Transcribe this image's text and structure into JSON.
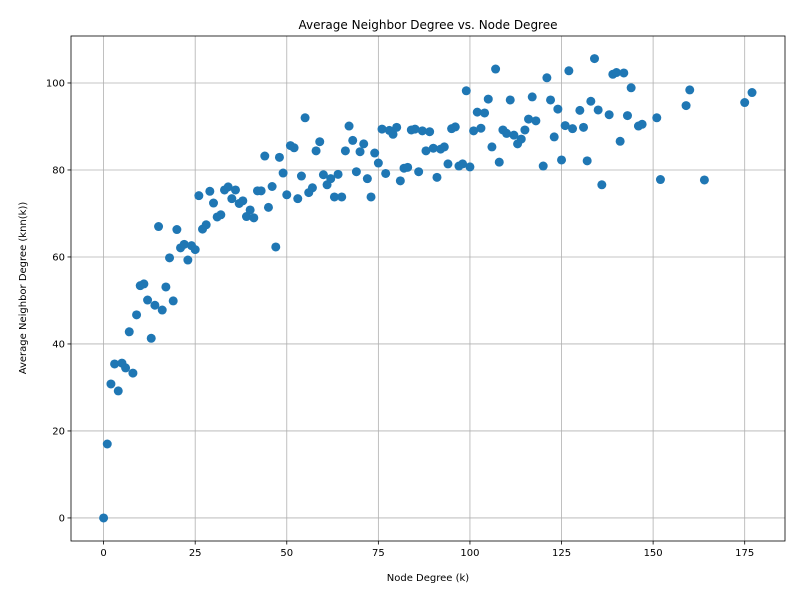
{
  "chart_data": {
    "type": "scatter",
    "title": "Average Neighbor Degree vs. Node Degree",
    "xlabel": "Node Degree (k)",
    "ylabel": "Average Neighbor Degree (knn(k))",
    "xlim": [
      -8.9,
      186
    ],
    "ylim": [
      -5.3,
      110.8
    ],
    "xticks": [
      0,
      25,
      50,
      75,
      100,
      125,
      150,
      175
    ],
    "yticks": [
      0,
      20,
      40,
      60,
      80,
      100
    ],
    "xtick_labels": [
      "0",
      "25",
      "50",
      "75",
      "100",
      "125",
      "150",
      "175"
    ],
    "ytick_labels": [
      "0",
      "20",
      "40",
      "60",
      "80",
      "100"
    ],
    "grid": true,
    "marker_color": "#1f77b4",
    "series": [
      {
        "x": [
          0,
          1,
          2,
          3,
          4,
          5,
          6,
          7,
          8,
          9,
          10,
          11,
          12,
          13,
          14,
          15,
          16,
          17,
          18,
          19,
          20,
          21,
          22,
          23,
          24,
          25,
          26,
          27,
          28,
          29,
          30,
          31,
          32,
          33,
          34,
          35,
          36,
          37,
          38,
          39,
          40,
          41,
          42,
          43,
          44,
          45,
          46,
          47,
          48,
          49,
          50,
          51,
          52,
          53,
          54,
          55,
          56,
          57,
          58,
          59,
          60,
          61,
          62,
          63,
          64,
          65,
          66,
          67,
          68,
          69,
          70,
          71,
          72,
          73,
          74,
          75,
          76,
          77,
          78,
          79,
          80,
          81,
          82,
          83,
          84,
          85,
          86,
          87,
          88,
          89,
          90,
          91,
          92,
          93,
          94,
          95,
          96,
          97,
          98,
          99,
          100,
          101,
          102,
          103,
          104,
          105,
          106,
          107,
          108,
          109,
          110,
          111,
          112,
          113,
          114,
          115,
          116,
          117,
          118,
          120,
          121,
          122,
          123,
          124,
          125,
          126,
          127,
          128,
          130,
          131,
          132,
          133,
          134,
          135,
          136,
          138,
          139,
          140,
          141,
          142,
          143,
          144,
          146,
          147,
          151,
          152,
          159,
          160,
          164,
          175,
          177
        ],
        "y": [
          0,
          17,
          30.8,
          35.4,
          29.2,
          35.6,
          34.5,
          42.8,
          33.3,
          46.7,
          53.4,
          53.8,
          50.1,
          41.3,
          48.9,
          67,
          47.8,
          53.1,
          59.8,
          49.9,
          66.3,
          62.1,
          62.9,
          59.3,
          62.6,
          61.7,
          74.1,
          66.4,
          67.4,
          75.1,
          72.4,
          69.2,
          69.7,
          75.4,
          76.1,
          73.4,
          75.4,
          72.3,
          72.9,
          69.3,
          70.8,
          69,
          75.2,
          75.2,
          83.2,
          71.4,
          76.2,
          62.3,
          82.9,
          79.3,
          74.3,
          85.6,
          85.1,
          73.4,
          78.6,
          92,
          74.8,
          75.9,
          84.4,
          86.5,
          78.9,
          76.6,
          78,
          73.8,
          79,
          73.8,
          84.4,
          90.1,
          86.8,
          79.6,
          84.2,
          86,
          78,
          73.8,
          83.9,
          81.6,
          89.4,
          79.2,
          89.1,
          88.2,
          89.8,
          77.5,
          80.4,
          80.6,
          89.2,
          89.4,
          79.6,
          89,
          84.4,
          88.8,
          85,
          78.3,
          84.8,
          85.3,
          81.4,
          89.5,
          89.9,
          80.9,
          81.4,
          98.2,
          80.7,
          89,
          93.3,
          89.6,
          93.1,
          96.3,
          85.3,
          103.2,
          81.8,
          89.2,
          88.4,
          96.1,
          88,
          86,
          87.1,
          89.2,
          91.7,
          96.8,
          91.3,
          80.9,
          101.2,
          96.1,
          87.6,
          94,
          82.3,
          90.2,
          102.8,
          89.5,
          93.7,
          89.8,
          82.1,
          95.8,
          105.6,
          93.8,
          76.6,
          92.7,
          102,
          102.4,
          86.6,
          102.3,
          92.5,
          98.9,
          90.1,
          90.5,
          92,
          77.8,
          94.8,
          98.4,
          77.7,
          95.5,
          97.8
        ]
      }
    ]
  }
}
